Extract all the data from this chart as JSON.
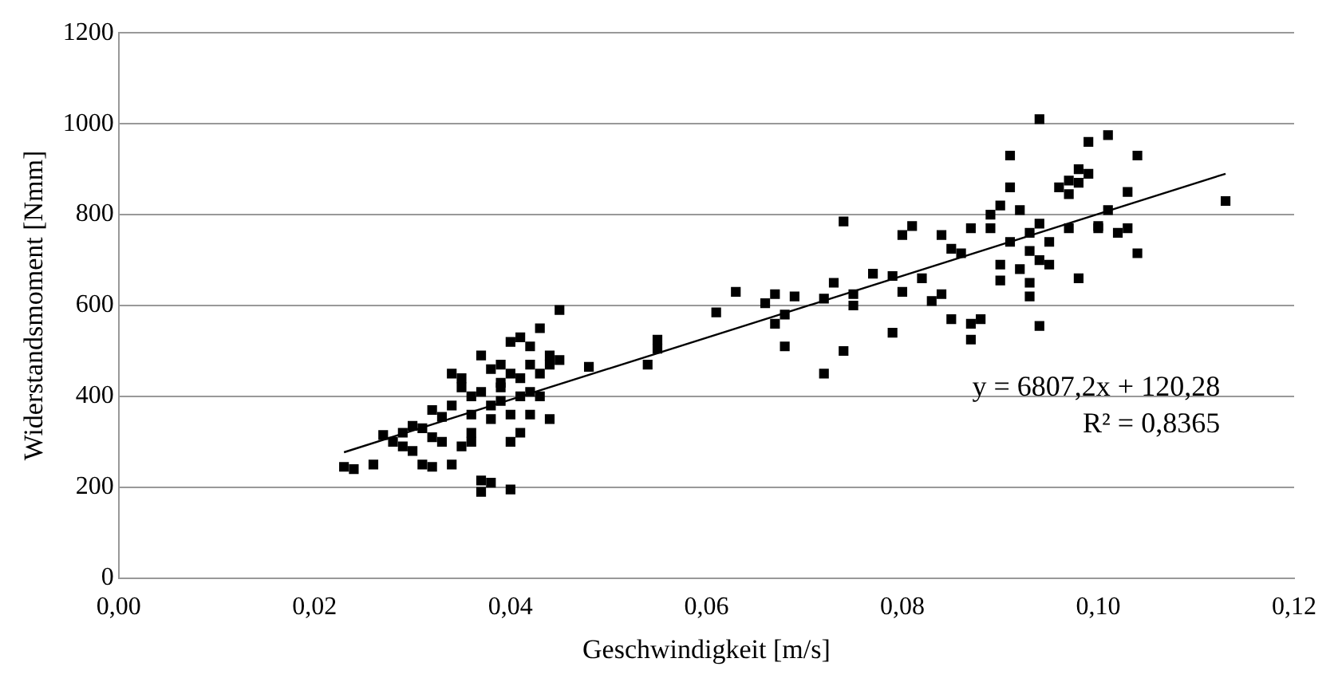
{
  "chart_data": {
    "type": "scatter",
    "xlabel": "Geschwindigkeit [m/s]",
    "ylabel": "Widerstandsmoment [Nmm]",
    "xlim": [
      0,
      0.12
    ],
    "xticks": [
      {
        "value": 0,
        "label": "0,00"
      },
      {
        "value": 0.02,
        "label": "0,02"
      },
      {
        "value": 0.04,
        "label": "0,04"
      },
      {
        "value": 0.06,
        "label": "0,06"
      },
      {
        "value": 0.08,
        "label": "0,08"
      },
      {
        "value": 0.1,
        "label": "0,10"
      },
      {
        "value": 0.12,
        "label": "0,12"
      }
    ],
    "ylim": [
      0,
      1200
    ],
    "yticks": [
      0,
      200,
      400,
      600,
      800,
      1000,
      1200
    ],
    "grid": "y",
    "legend": false,
    "marker": "square",
    "annotations": [
      "y = 6807,2x + 120,28",
      "R² = 0,8365"
    ],
    "series": [
      {
        "color": "#000000",
        "x": [
          0.023,
          0.024,
          0.026,
          0.027,
          0.028,
          0.029,
          0.029,
          0.03,
          0.03,
          0.031,
          0.031,
          0.032,
          0.032,
          0.032,
          0.033,
          0.033,
          0.034,
          0.034,
          0.034,
          0.035,
          0.035,
          0.035,
          0.036,
          0.036,
          0.036,
          0.036,
          0.037,
          0.037,
          0.037,
          0.037,
          0.038,
          0.038,
          0.038,
          0.038,
          0.039,
          0.039,
          0.039,
          0.039,
          0.04,
          0.04,
          0.04,
          0.04,
          0.04,
          0.041,
          0.041,
          0.041,
          0.041,
          0.042,
          0.042,
          0.042,
          0.042,
          0.043,
          0.043,
          0.043,
          0.044,
          0.044,
          0.044,
          0.045,
          0.045,
          0.048,
          0.054,
          0.055,
          0.055,
          0.061,
          0.063,
          0.066,
          0.067,
          0.067,
          0.068,
          0.068,
          0.069,
          0.072,
          0.072,
          0.073,
          0.074,
          0.074,
          0.075,
          0.075,
          0.077,
          0.079,
          0.079,
          0.08,
          0.08,
          0.081,
          0.082,
          0.083,
          0.084,
          0.084,
          0.085,
          0.085,
          0.086,
          0.087,
          0.087,
          0.087,
          0.088,
          0.089,
          0.089,
          0.09,
          0.09,
          0.09,
          0.091,
          0.091,
          0.091,
          0.092,
          0.092,
          0.093,
          0.093,
          0.093,
          0.093,
          0.094,
          0.094,
          0.094,
          0.094,
          0.095,
          0.095,
          0.096,
          0.097,
          0.097,
          0.097,
          0.098,
          0.098,
          0.098,
          0.099,
          0.099,
          0.1,
          0.1,
          0.101,
          0.101,
          0.102,
          0.103,
          0.103,
          0.104,
          0.104,
          0.113
        ],
        "values": [
          245,
          240,
          250,
          315,
          300,
          290,
          320,
          335,
          280,
          250,
          330,
          370,
          310,
          245,
          355,
          300,
          450,
          250,
          380,
          420,
          290,
          440,
          400,
          360,
          300,
          320,
          490,
          190,
          215,
          410,
          210,
          380,
          460,
          350,
          430,
          390,
          470,
          420,
          300,
          195,
          450,
          520,
          360,
          530,
          400,
          320,
          440,
          410,
          510,
          470,
          360,
          550,
          450,
          400,
          490,
          470,
          350,
          590,
          480,
          465,
          470,
          525,
          505,
          585,
          630,
          605,
          560,
          625,
          580,
          510,
          620,
          450,
          615,
          650,
          500,
          785,
          625,
          600,
          670,
          540,
          665,
          630,
          755,
          775,
          660,
          610,
          755,
          625,
          570,
          725,
          715,
          525,
          560,
          770,
          570,
          800,
          770,
          820,
          690,
          655,
          930,
          860,
          740,
          680,
          810,
          760,
          720,
          650,
          620,
          1010,
          780,
          700,
          555,
          690,
          740,
          860,
          770,
          845,
          875,
          900,
          870,
          660,
          960,
          890,
          770,
          775,
          975,
          810,
          760,
          850,
          770,
          715,
          930,
          830
        ]
      },
      {
        "type": "line",
        "color": "#000000",
        "marker": "none",
        "x": [
          0.023,
          0.113
        ],
        "values": [
          277,
          890
        ]
      }
    ]
  }
}
